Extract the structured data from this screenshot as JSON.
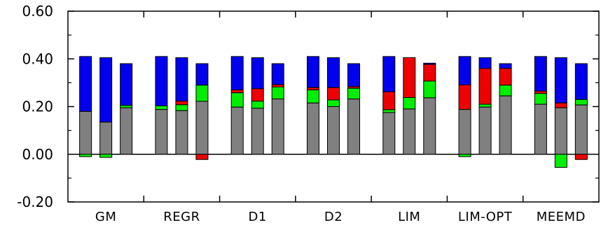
{
  "chart_data": {
    "type": "bar",
    "stacked": true,
    "title": "",
    "xlabel": "",
    "ylabel": "",
    "ylim": [
      -0.2,
      0.6
    ],
    "y_ticks": [
      -0.2,
      0.0,
      0.2,
      0.4,
      0.6
    ],
    "y_tick_labels": [
      "-0.20",
      "0.00",
      "0.20",
      "0.40",
      "0.60"
    ],
    "y_minor_ticks": [
      -0.1,
      0.1,
      0.3,
      0.5
    ],
    "categories": [
      "GM",
      "REGR",
      "D1",
      "D2",
      "LIM",
      "LIM-OPT",
      "MEEMD"
    ],
    "bars_per_category": 3,
    "component_colors": {
      "gray": "#808080",
      "green": "#00ee00",
      "red": "#ee0000",
      "blue": "#0000ee"
    },
    "groups": [
      {
        "category": "GM",
        "bars": [
          {
            "gray": 0.18,
            "green": -0.01,
            "red": 0.0,
            "blue": 0.23
          },
          {
            "gray": 0.135,
            "green": -0.013,
            "red": 0.0,
            "blue": 0.27
          },
          {
            "gray": 0.195,
            "green": 0.01,
            "red": 0.0,
            "blue": 0.175
          }
        ]
      },
      {
        "category": "REGR",
        "bars": [
          {
            "gray": 0.188,
            "green": 0.015,
            "red": 0.0,
            "blue": 0.207
          },
          {
            "gray": 0.183,
            "green": 0.025,
            "red": 0.015,
            "blue": 0.182
          },
          {
            "gray": 0.222,
            "green": 0.068,
            "red": -0.022,
            "blue": 0.09
          }
        ]
      },
      {
        "category": "D1",
        "bars": [
          {
            "gray": 0.198,
            "green": 0.06,
            "red": 0.012,
            "blue": 0.14
          },
          {
            "gray": 0.193,
            "green": 0.03,
            "red": 0.052,
            "blue": 0.13
          },
          {
            "gray": 0.232,
            "green": 0.05,
            "red": 0.01,
            "blue": 0.088
          }
        ]
      },
      {
        "category": "D2",
        "bars": [
          {
            "gray": 0.215,
            "green": 0.055,
            "red": 0.01,
            "blue": 0.13
          },
          {
            "gray": 0.2,
            "green": 0.028,
            "red": 0.052,
            "blue": 0.125
          },
          {
            "gray": 0.232,
            "green": 0.045,
            "red": 0.007,
            "blue": 0.096
          }
        ]
      },
      {
        "category": "LIM",
        "bars": [
          {
            "gray": 0.175,
            "green": 0.012,
            "red": 0.075,
            "blue": 0.148
          },
          {
            "gray": 0.19,
            "green": 0.048,
            "red": 0.167,
            "blue": 0.0
          },
          {
            "gray": 0.237,
            "green": 0.07,
            "red": 0.07,
            "blue": 0.005
          }
        ]
      },
      {
        "category": "LIM-OPT",
        "bars": [
          {
            "gray": 0.188,
            "green": -0.01,
            "red": 0.103,
            "blue": 0.119
          },
          {
            "gray": 0.198,
            "green": 0.012,
            "red": 0.15,
            "blue": 0.045
          },
          {
            "gray": 0.245,
            "green": 0.045,
            "red": 0.07,
            "blue": 0.02
          }
        ]
      },
      {
        "category": "MEEMD",
        "bars": [
          {
            "gray": 0.21,
            "green": 0.045,
            "red": 0.01,
            "blue": 0.145
          },
          {
            "gray": 0.195,
            "green": -0.055,
            "red": 0.02,
            "blue": 0.19
          },
          {
            "gray": 0.207,
            "green": 0.023,
            "red": -0.022,
            "blue": 0.15
          }
        ]
      }
    ]
  }
}
